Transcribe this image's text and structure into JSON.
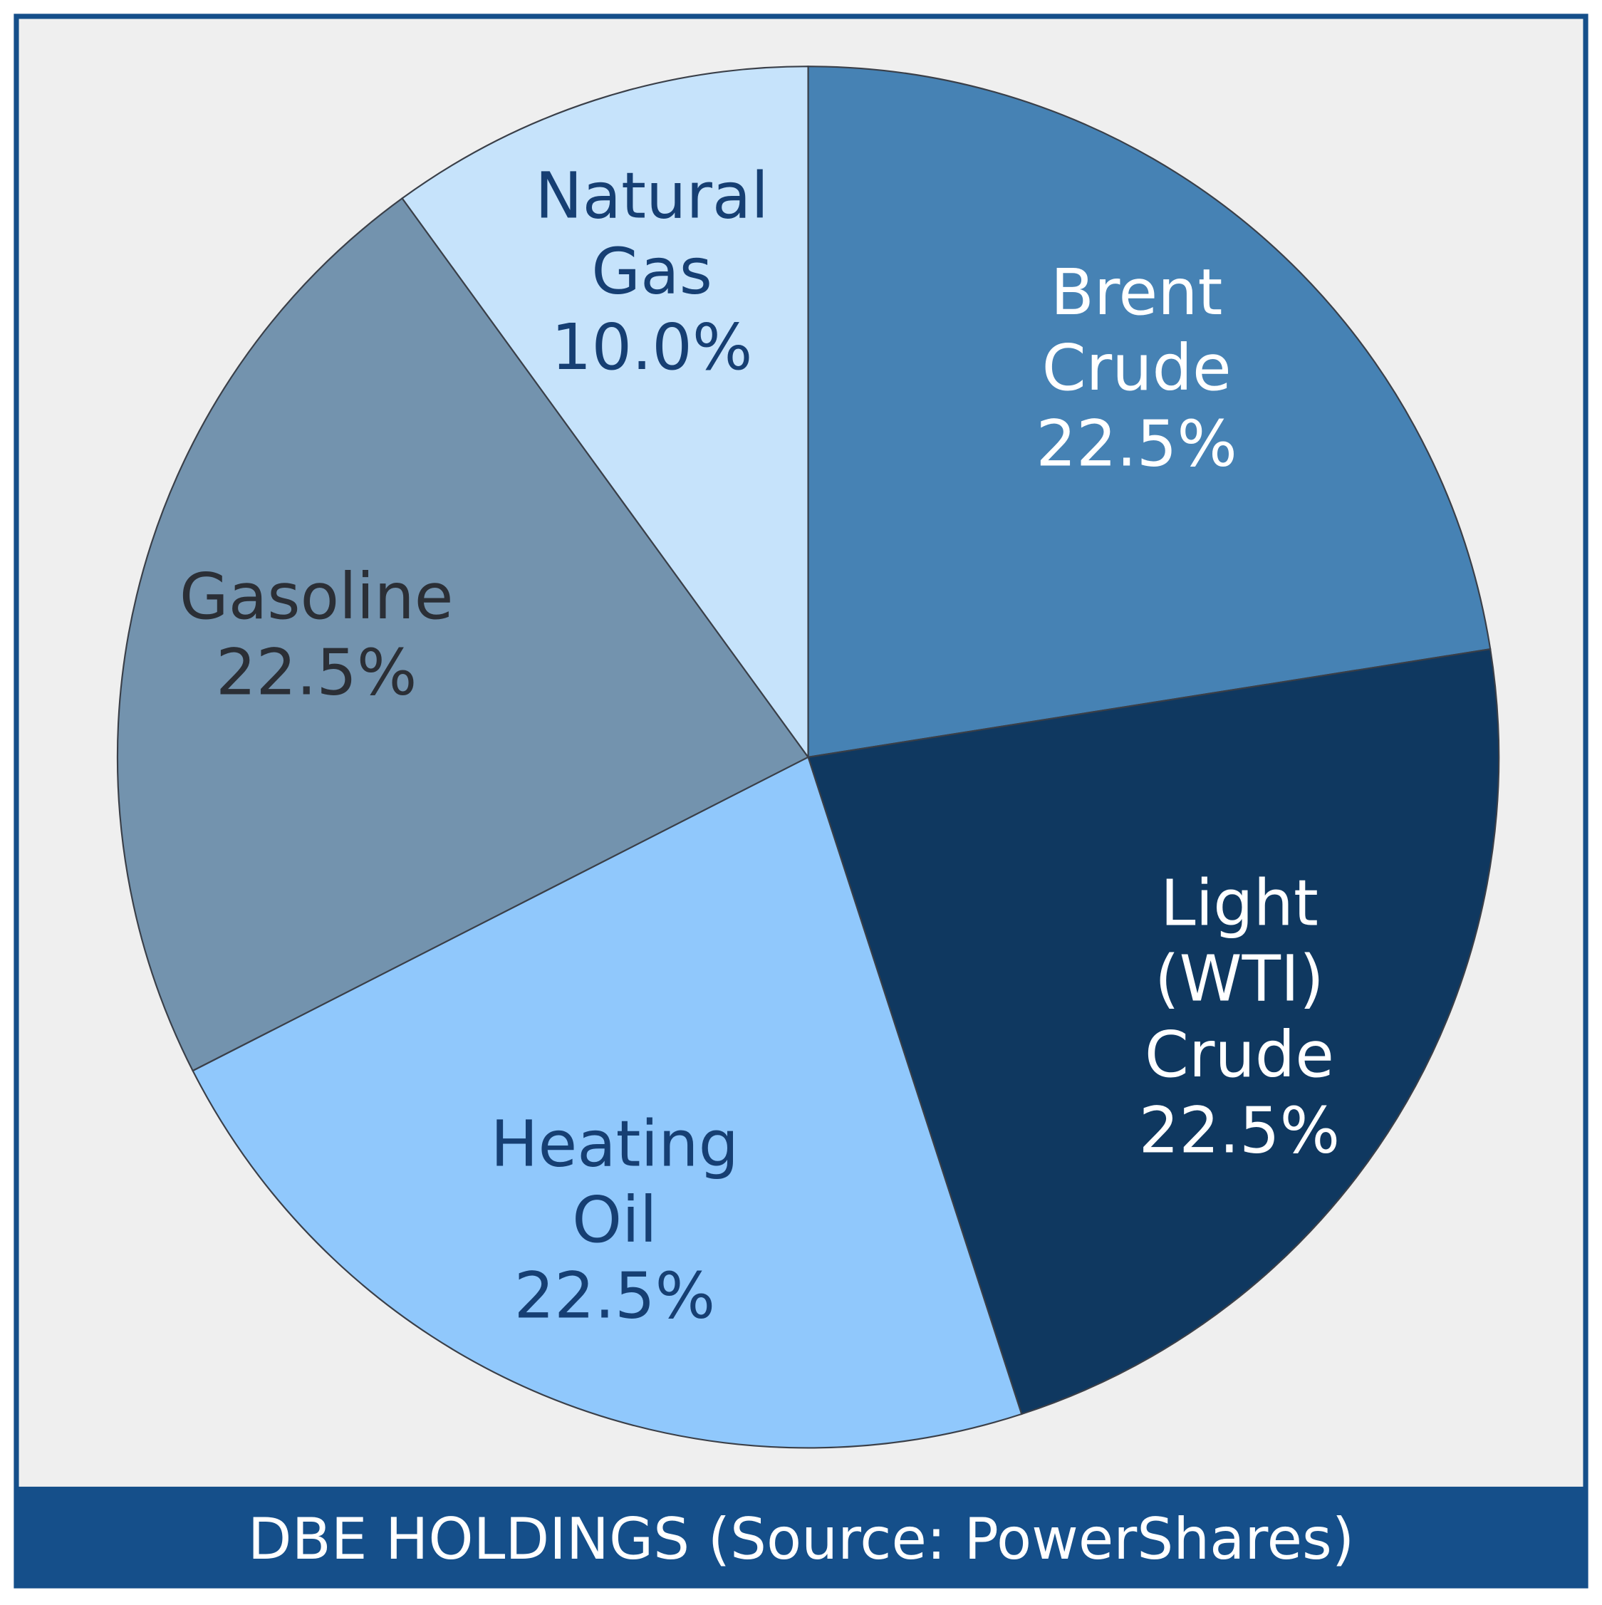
{
  "chart_data": {
    "type": "pie",
    "title": "DBE HOLDINGS (Source: PowerShares)",
    "categories": [
      "Brent Crude",
      "Light (WTI) Crude",
      "Heating Oil",
      "Gasoline",
      "Natural Gas"
    ],
    "values": [
      22.5,
      22.5,
      22.5,
      22.5,
      10.0
    ],
    "value_labels": [
      "22.5%",
      "22.5%",
      "22.5%",
      "22.5%",
      "10.0%"
    ],
    "colors": [
      "#4682b4",
      "#0f3860",
      "#90c8fc",
      "#7393ae",
      "#c6e3fb"
    ],
    "label_colors": [
      "#ffffff",
      "#ffffff",
      "#163f73",
      "#2b2f36",
      "#163f73"
    ]
  }
}
